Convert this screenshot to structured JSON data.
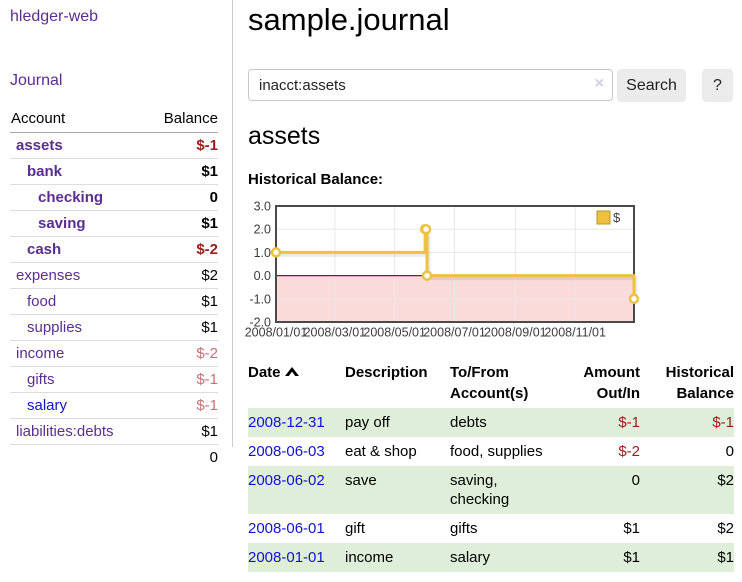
{
  "sidebar": {
    "app_title": "hledger-web",
    "nav": {
      "journal_label": "Journal"
    },
    "accounts_table": {
      "headers": {
        "account": "Account",
        "balance": "Balance"
      },
      "rows": [
        {
          "name": "assets",
          "indent": 0,
          "bold": true,
          "balance": "$-1",
          "balance_style": "neg-strong",
          "link_color": "purple"
        },
        {
          "name": "bank",
          "indent": 1,
          "bold": true,
          "balance": "$1",
          "balance_style": "normal",
          "link_color": "purple"
        },
        {
          "name": "checking",
          "indent": 2,
          "bold": true,
          "balance": "0",
          "balance_style": "normal",
          "link_color": "purple"
        },
        {
          "name": "saving",
          "indent": 2,
          "bold": true,
          "balance": "$1",
          "balance_style": "normal",
          "link_color": "purple"
        },
        {
          "name": "cash",
          "indent": 1,
          "bold": true,
          "balance": "$-2",
          "balance_style": "neg-strong",
          "link_color": "purple"
        },
        {
          "name": "expenses",
          "indent": 0,
          "bold": false,
          "balance": "$2",
          "balance_style": "normal",
          "link_color": "purple"
        },
        {
          "name": "food",
          "indent": 1,
          "bold": false,
          "balance": "$1",
          "balance_style": "normal",
          "link_color": "purple"
        },
        {
          "name": "supplies",
          "indent": 1,
          "bold": false,
          "balance": "$1",
          "balance_style": "normal",
          "link_color": "purple"
        },
        {
          "name": "income",
          "indent": 0,
          "bold": false,
          "balance": "$-2",
          "balance_style": "neg-light",
          "link_color": "purple"
        },
        {
          "name": "gifts",
          "indent": 1,
          "bold": false,
          "balance": "$-1",
          "balance_style": "neg-light",
          "link_color": "purple"
        },
        {
          "name": "salary",
          "indent": 1,
          "bold": false,
          "balance": "$-1",
          "balance_style": "neg-light",
          "link_color": "blue"
        },
        {
          "name": "liabilities:debts",
          "indent": 0,
          "bold": false,
          "balance": "$1",
          "balance_style": "normal",
          "link_color": "purple"
        }
      ],
      "total": "0"
    }
  },
  "header": {
    "title": "sample.journal",
    "search": {
      "value": "inacct:assets",
      "clear_icon": "×",
      "button_label": "Search",
      "help_label": "?"
    }
  },
  "register": {
    "account_heading": "assets",
    "chart_label": "Historical Balance:",
    "table": {
      "sort_indicator": "ascending",
      "headers": {
        "date": "Date",
        "description": "Description",
        "accounts": "To/From Account(s)",
        "amount": "Amount Out/In",
        "balance": "Historical Balance"
      },
      "rows": [
        {
          "date": "2008-12-31",
          "description": "pay off",
          "accounts": "debts",
          "amount": "$-1",
          "amount_negative": true,
          "balance": "$-1",
          "balance_negative": true,
          "highlighted": true
        },
        {
          "date": "2008-06-03",
          "description": "eat & shop",
          "accounts": "food, supplies",
          "amount": "$-2",
          "amount_negative": true,
          "balance": "0",
          "balance_negative": false,
          "highlighted": false
        },
        {
          "date": "2008-06-02",
          "description": "save",
          "accounts": "saving, checking",
          "amount": "0",
          "amount_negative": false,
          "balance": "$2",
          "balance_negative": false,
          "highlighted": true
        },
        {
          "date": "2008-06-01",
          "description": "gift",
          "accounts": "gifts",
          "amount": "$1",
          "amount_negative": false,
          "balance": "$2",
          "balance_negative": false,
          "highlighted": false
        },
        {
          "date": "2008-01-01",
          "description": "income",
          "accounts": "salary",
          "amount": "$1",
          "amount_negative": false,
          "balance": "$1",
          "balance_negative": false,
          "highlighted": true
        }
      ]
    }
  },
  "chart_data": {
    "type": "line",
    "step": true,
    "title": "Historical Balance:",
    "series": [
      {
        "name": "$",
        "color": "#EDC240",
        "points": [
          [
            "2008-01-01",
            1
          ],
          [
            "2008-06-01",
            2
          ],
          [
            "2008-06-02",
            2
          ],
          [
            "2008-06-03",
            0
          ],
          [
            "2008-12-31",
            -1
          ]
        ]
      }
    ],
    "xlim": [
      "2008-01-01",
      "2008-12-31"
    ],
    "ylim": [
      -2,
      3
    ],
    "yticks": [
      {
        "v": 3,
        "label": "3.0"
      },
      {
        "v": 2,
        "label": "2.0"
      },
      {
        "v": 1,
        "label": "1.0"
      },
      {
        "v": 0,
        "label": "0.0"
      },
      {
        "v": -1,
        "label": "-1.0"
      },
      {
        "v": -2,
        "label": "-2.0"
      }
    ],
    "xticks": [
      {
        "d": "2008-01-01",
        "label": "2008/01/01"
      },
      {
        "d": "2008-03-01",
        "label": "2008/03/01"
      },
      {
        "d": "2008-05-01",
        "label": "2008/05/01"
      },
      {
        "d": "2008-07-01",
        "label": "2008/07/01"
      },
      {
        "d": "2008-09-01",
        "label": "2008/09/01"
      },
      {
        "d": "2008-11-01",
        "label": "2008/11/01"
      }
    ],
    "legend": {
      "position": "top-right",
      "entries": [
        {
          "label": "$",
          "color": "#EDC240"
        }
      ]
    },
    "grid": true,
    "colors": {
      "line": "#EDC240",
      "negative_region": "#fbdada",
      "zero_line": "#991111",
      "gridline": "#e8e8e8",
      "border": "#4a4a4a",
      "tick_text": "#3c3c3c"
    }
  },
  "colors": {
    "link_purple": "#5b2d90",
    "link_blue": "#1414cc",
    "date_link_blue": "#1212d4",
    "negative_strong": "#96201d",
    "negative_light": "#c47272",
    "row_highlight_green": "#deeed8",
    "button_gray": "#ebebeb"
  }
}
